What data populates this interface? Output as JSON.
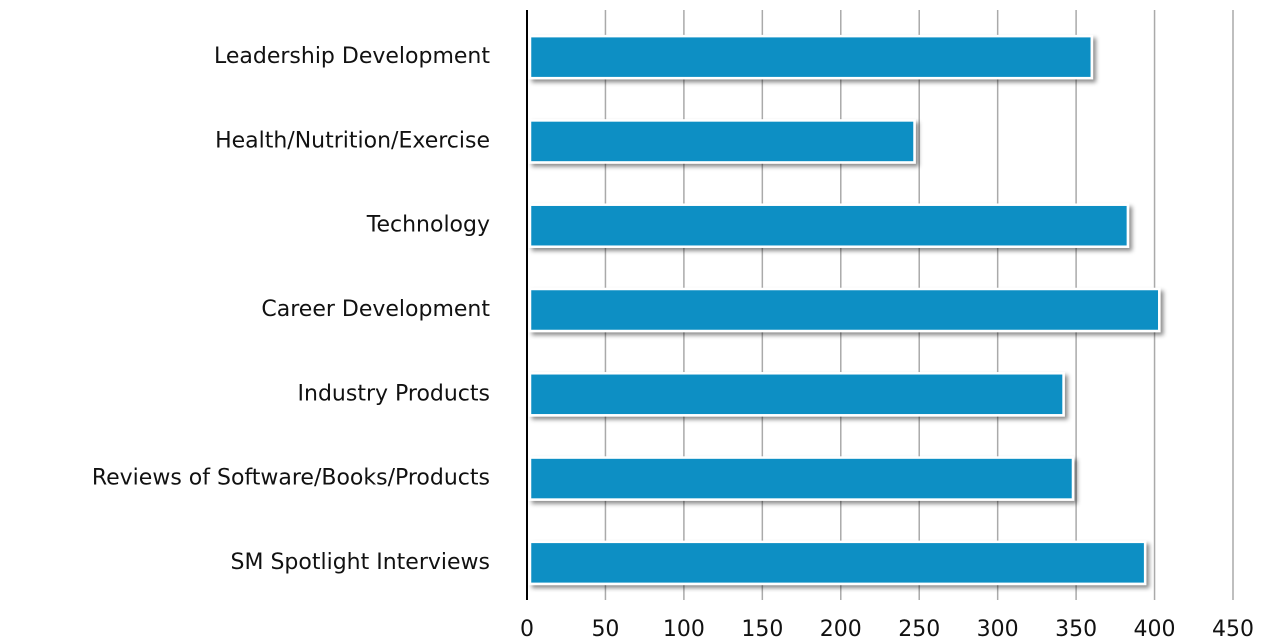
{
  "chart_data": {
    "type": "bar",
    "orientation": "horizontal",
    "categories": [
      "Leadership Development",
      "Health/Nutrition/Exercise",
      "Technology",
      "Career Development",
      "Industry Products",
      "Reviews of Software/Books/Products",
      "SM Spotlight Interviews"
    ],
    "values": [
      360,
      247,
      383,
      403,
      342,
      348,
      394
    ],
    "color": "#0a8fc4",
    "xlim": [
      0,
      450
    ],
    "xticks": [
      0,
      50,
      100,
      150,
      200,
      250,
      300,
      350,
      400,
      450
    ],
    "grid": true
  }
}
